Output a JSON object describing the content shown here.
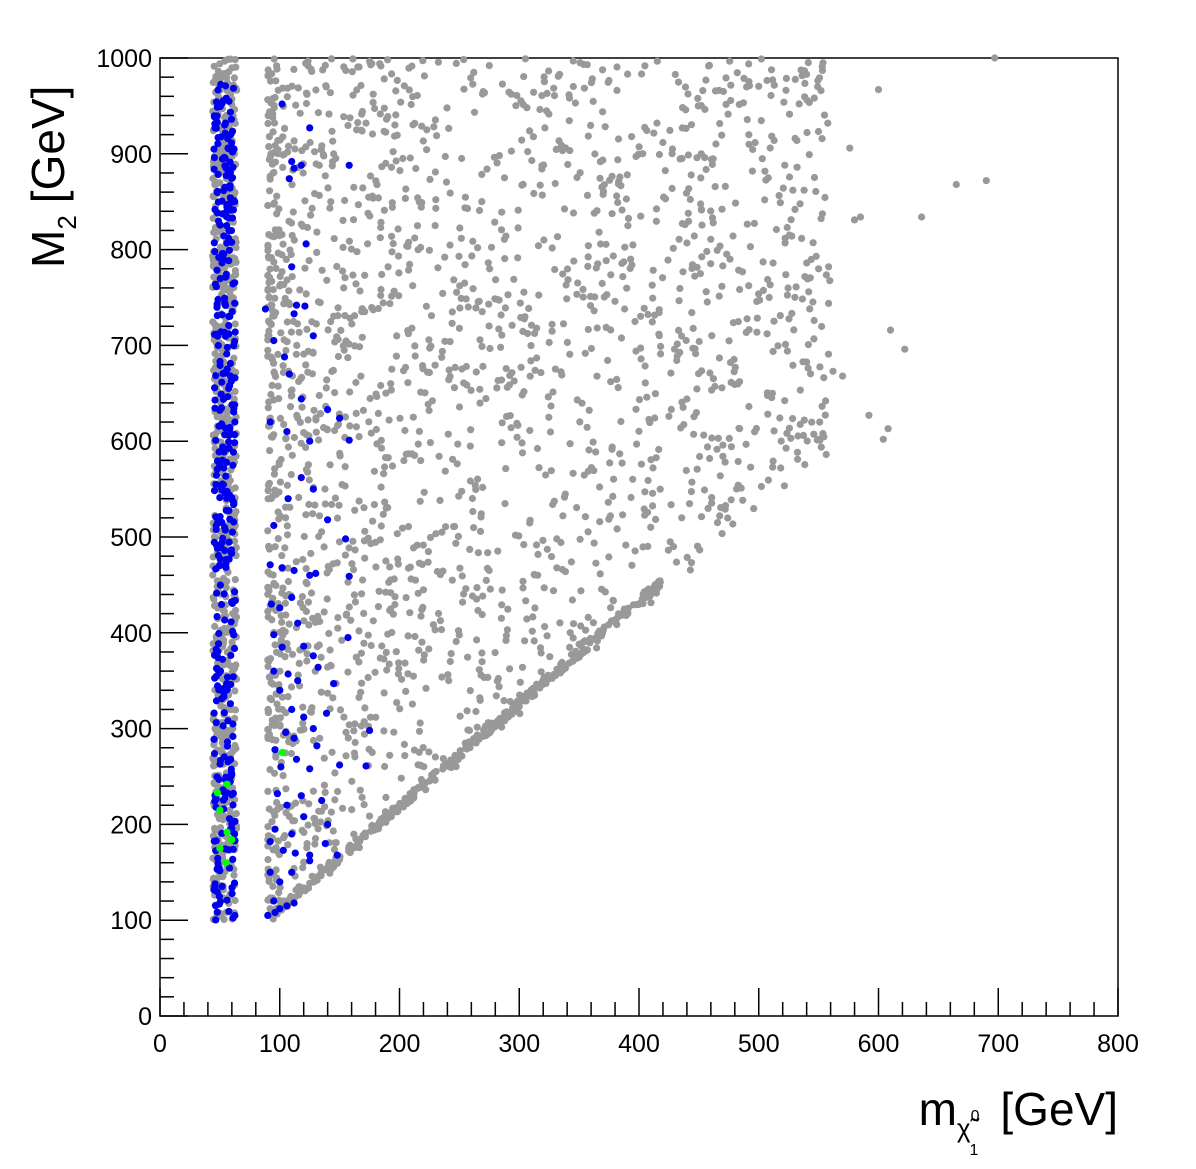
{
  "chart_data": {
    "type": "scatter",
    "title": "",
    "xlabel": {
      "prefix": "m",
      "sub_symbol": "χ̃",
      "sub_superscript": "0",
      "sub_subscript": "1",
      "unit": "[GeV]"
    },
    "ylabel": {
      "prefix": "M",
      "subscript": "2",
      "unit": "[GeV]"
    },
    "xlim": [
      0,
      800
    ],
    "ylim": [
      0,
      1000
    ],
    "x_ticks": [
      0,
      100,
      200,
      300,
      400,
      500,
      600,
      700,
      800
    ],
    "y_ticks": [
      0,
      100,
      200,
      300,
      400,
      500,
      600,
      700,
      800,
      900,
      1000
    ],
    "grid": false,
    "legend": "none",
    "colors": {
      "gray": "#999999",
      "blue": "#0000ee",
      "green": "#00ff00"
    },
    "series": [
      {
        "color": "gray",
        "regions": [
          {
            "shape": "band",
            "x": [
              44,
              64
            ],
            "y": [
              100,
              1000
            ],
            "count": 700
          },
          {
            "shape": "diagonal_edge",
            "x": [
              90,
              420
            ],
            "y_over_x": 1.07,
            "count": 330
          },
          {
            "shape": "wedge",
            "x": [
              90,
              560
            ],
            "y_over_x_min": 1.05,
            "y": [
              100,
              1000
            ],
            "count": 2000
          }
        ],
        "points": [
          [
            697,
            1000
          ],
          [
            690,
            872
          ],
          [
            665,
            868
          ],
          [
            636,
            834
          ],
          [
            622,
            696
          ],
          [
            610,
            716
          ],
          [
            608,
            613
          ],
          [
            604,
            602
          ],
          [
            600,
            967
          ],
          [
            592,
            627
          ],
          [
            585,
            834
          ],
          [
            580,
            831
          ],
          [
            576,
            906
          ],
          [
            570,
            668
          ],
          [
            562,
            673
          ],
          [
            553,
            991
          ],
          [
            552,
            966
          ],
          [
            550,
            780
          ],
          [
            548,
            793
          ],
          [
            540,
            786
          ],
          [
            522,
            807
          ],
          [
            512,
            786
          ],
          [
            508,
            875
          ],
          [
            505,
            852
          ],
          [
            493,
            803
          ],
          [
            484,
            613
          ],
          [
            476,
            790
          ],
          [
            470,
            783
          ],
          [
            462,
            828
          ],
          [
            452,
            842
          ],
          [
            445,
            697
          ],
          [
            440,
            644
          ],
          [
            432,
            689
          ],
          [
            425,
            626
          ],
          [
            418,
            699
          ],
          [
            402,
            576
          ],
          [
            398,
            597
          ],
          [
            388,
            738
          ],
          [
            380,
            746
          ]
        ]
      },
      {
        "color": "blue",
        "regions": [
          {
            "shape": "band",
            "x": [
              45,
              63
            ],
            "y": [
              100,
              975
            ],
            "count": 360
          }
        ],
        "points": [
          [
            102,
            952
          ],
          [
            110,
            892
          ],
          [
            118,
            888
          ],
          [
            108,
            874
          ],
          [
            112,
            885
          ],
          [
            125,
            927
          ],
          [
            122,
            806
          ],
          [
            158,
            888
          ],
          [
            110,
            782
          ],
          [
            88,
            738
          ],
          [
            114,
            742
          ],
          [
            121,
            741
          ],
          [
            112,
            733
          ],
          [
            128,
            710
          ],
          [
            95,
            705
          ],
          [
            104,
            688
          ],
          [
            108,
            670
          ],
          [
            118,
            644
          ],
          [
            140,
            633
          ],
          [
            92,
            620
          ],
          [
            106,
            610
          ],
          [
            150,
            624
          ],
          [
            125,
            600
          ],
          [
            158,
            601
          ],
          [
            118,
            562
          ],
          [
            107,
            540
          ],
          [
            128,
            550
          ],
          [
            95,
            512
          ],
          [
            140,
            518
          ],
          [
            155,
            498
          ],
          [
            92,
            471
          ],
          [
            102,
            468
          ],
          [
            112,
            465
          ],
          [
            125,
            460
          ],
          [
            130,
            462
          ],
          [
            158,
            459
          ],
          [
            93,
            430
          ],
          [
            100,
            426
          ],
          [
            110,
            437
          ],
          [
            115,
            410
          ],
          [
            95,
            398
          ],
          [
            102,
            385
          ],
          [
            120,
            386
          ],
          [
            128,
            376
          ],
          [
            157,
            395
          ],
          [
            95,
            360
          ],
          [
            107,
            357
          ],
          [
            115,
            350
          ],
          [
            132,
            364
          ],
          [
            100,
            340
          ],
          [
            110,
            320
          ],
          [
            120,
            312
          ],
          [
            145,
            347
          ],
          [
            105,
            296
          ],
          [
            112,
            290
          ],
          [
            128,
            300
          ],
          [
            139,
            316
          ],
          [
            175,
            298
          ],
          [
            96,
            278
          ],
          [
            101,
            260
          ],
          [
            114,
            268
          ],
          [
            125,
            258
          ],
          [
            131,
            282
          ],
          [
            150,
            262
          ],
          [
            172,
            261
          ],
          [
            98,
            232
          ],
          [
            106,
            220
          ],
          [
            118,
            230
          ],
          [
            135,
            225
          ],
          [
            96,
            195
          ],
          [
            110,
            190
          ],
          [
            120,
            208
          ],
          [
            140,
            200
          ],
          [
            92,
            182
          ],
          [
            103,
            173
          ],
          [
            113,
            170
          ],
          [
            125,
            168
          ],
          [
            138,
            180
          ],
          [
            148,
            168
          ],
          [
            92,
            150
          ],
          [
            100,
            140
          ],
          [
            110,
            150
          ],
          [
            125,
            162
          ],
          [
            95,
            120
          ],
          [
            100,
            112
          ],
          [
            106,
            115
          ],
          [
            112,
            118
          ],
          [
            90,
            105
          ],
          [
            96,
            108
          ]
        ]
      },
      {
        "color": "green",
        "points": [
          [
            48,
            233
          ],
          [
            56,
            242
          ],
          [
            50,
            215
          ],
          [
            56,
            192
          ],
          [
            60,
            184
          ],
          [
            50,
            175
          ],
          [
            55,
            160
          ],
          [
            102,
            275
          ]
        ]
      }
    ]
  },
  "labels": {
    "x_prefix": "m",
    "x_sub_symbol": "χ̃",
    "x_sub_sup": "0",
    "x_sub_sub": "1",
    "x_unit": "[GeV]",
    "y_prefix": "M",
    "y_sub": "2",
    "y_unit": "[GeV]"
  }
}
